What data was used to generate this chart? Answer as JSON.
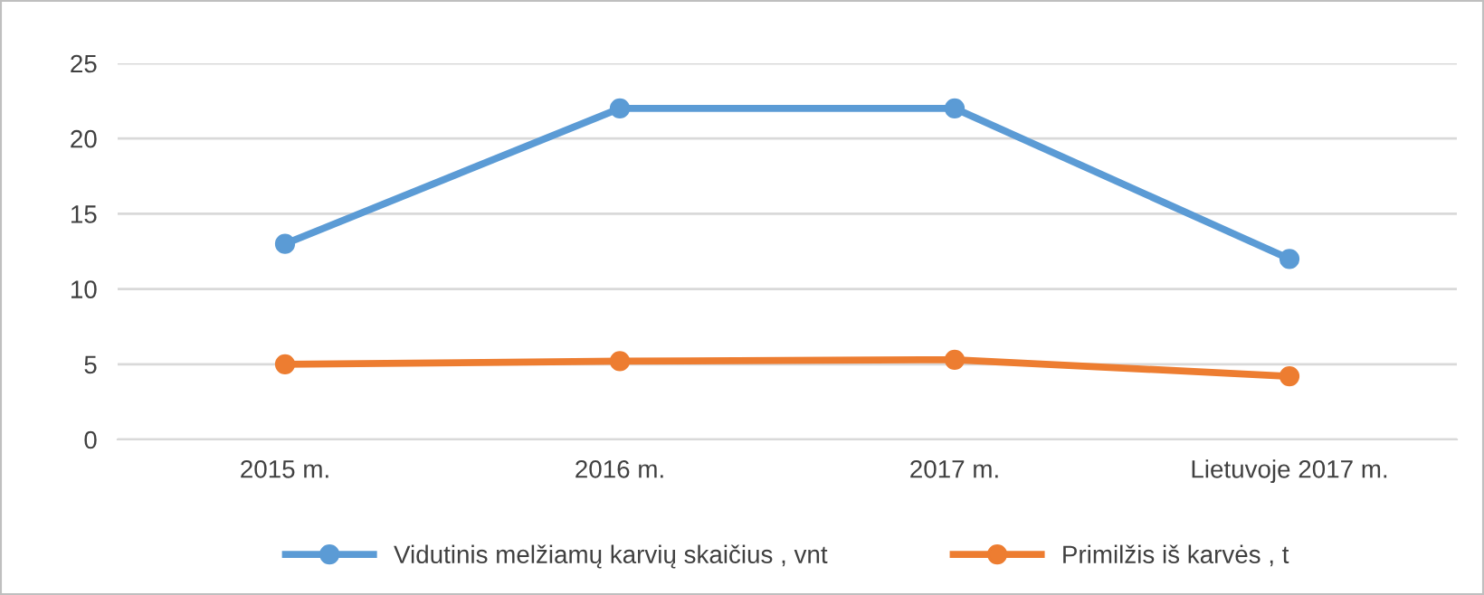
{
  "chart_data": {
    "type": "line",
    "categories": [
      "2015 m.",
      "2016 m.",
      "2017 m.",
      "Lietuvoje 2017 m."
    ],
    "series": [
      {
        "name": "Vidutinis melžiamų karvių skaičius , vnt",
        "color": "#5b9bd5",
        "values": [
          13,
          22,
          22,
          12
        ]
      },
      {
        "name": "Primilžis iš karvės , t",
        "color": "#ed7d31",
        "values": [
          5.0,
          5.2,
          5.3,
          4.2
        ]
      }
    ],
    "ylim": [
      0,
      25
    ],
    "yticks": [
      0,
      5,
      10,
      15,
      20,
      25
    ],
    "grid": "y",
    "legend": "bottom",
    "marker": "circle",
    "line_style": "solid"
  }
}
